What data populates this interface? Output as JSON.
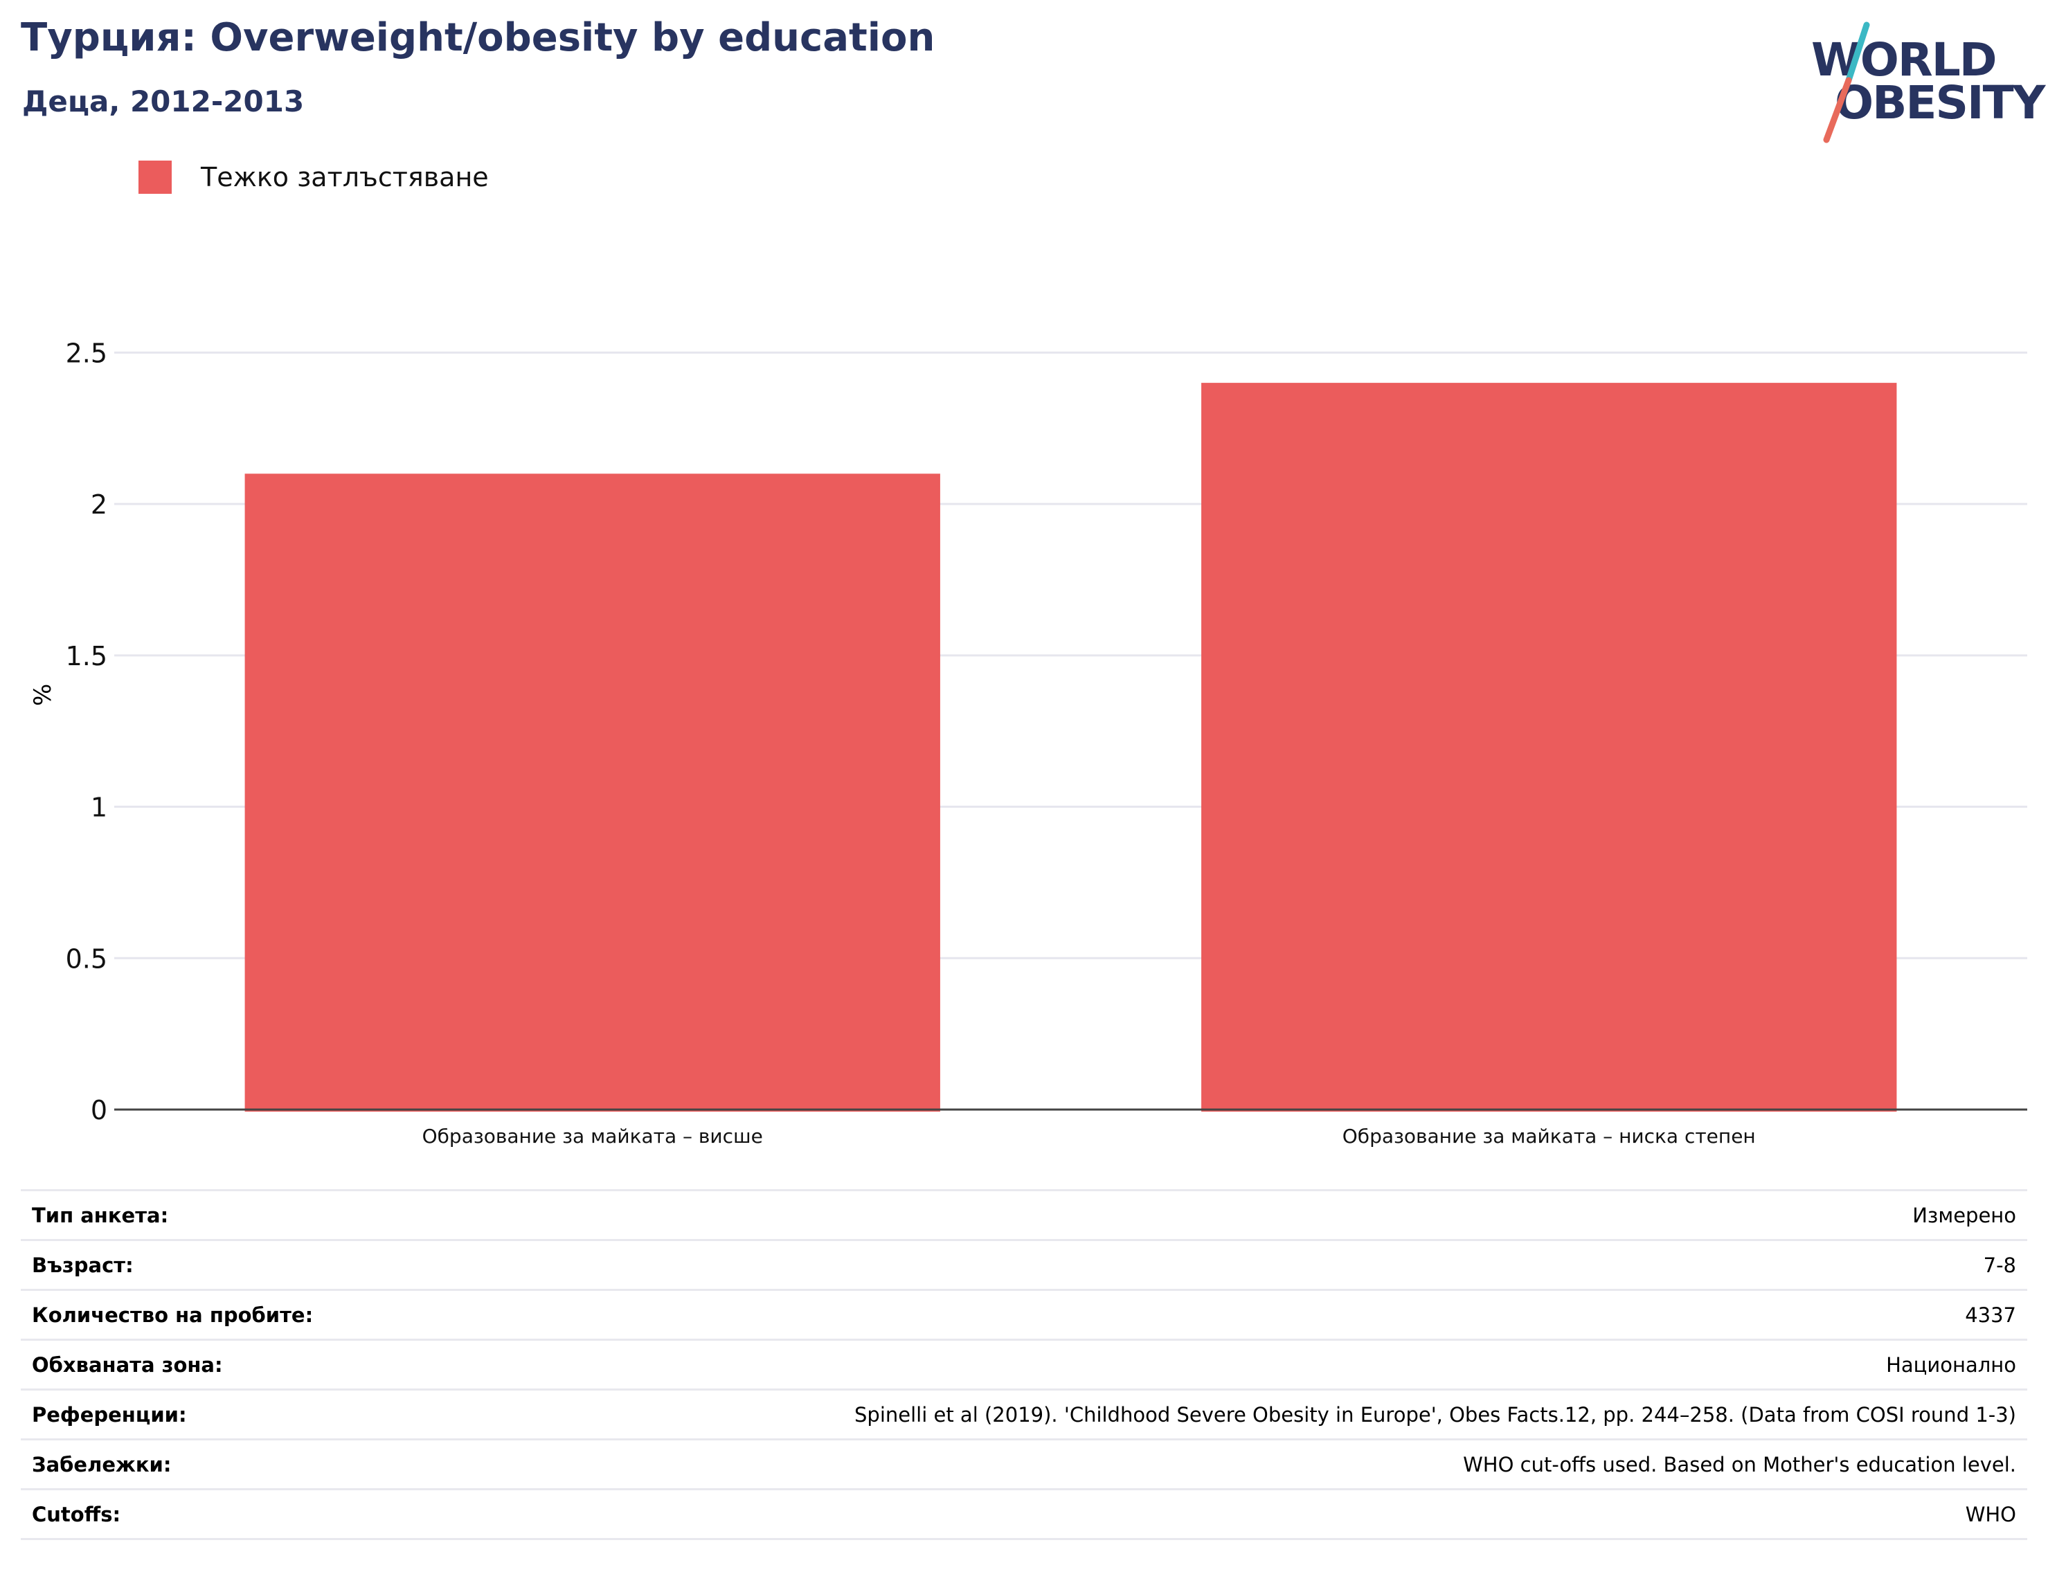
{
  "header": {
    "title": "Турция: Overweight/obesity by education",
    "subtitle": "Деца, 2012-2013"
  },
  "logo": {
    "line1": "WORLD",
    "line2": "OBESITY",
    "colors": {
      "text": "#283460",
      "slash_top": "#3bb8c4",
      "slash_bottom": "#e86a5b"
    }
  },
  "colors": {
    "bar": "#eb5c5c",
    "title": "#283460",
    "grid": "#e6e6ee",
    "axis": "#444444"
  },
  "chart_data": {
    "type": "bar",
    "title": "Турция: Overweight/obesity by education",
    "subtitle": "Деца, 2012-2013",
    "ylabel": "%",
    "xlabel": "",
    "ylim": [
      0,
      2.75
    ],
    "yticks": [
      0,
      0.5,
      1,
      1.5,
      2,
      2.5
    ],
    "ytick_labels": [
      "0",
      "0.5",
      "1",
      "1.5",
      "2",
      "2.5"
    ],
    "categories": [
      "Образование за майката – висше",
      "Образование за майката – ниска степен"
    ],
    "series": [
      {
        "name": "Тежко затлъстяване",
        "values": [
          2.1,
          2.4
        ],
        "color": "#eb5c5c"
      }
    ],
    "grid": true,
    "legend_position": "top-left"
  },
  "info": {
    "rows": [
      {
        "key": "Тип анкета:",
        "value": "Измерено"
      },
      {
        "key": "Възраст:",
        "value": "7-8"
      },
      {
        "key": "Количество на пробите:",
        "value": "4337"
      },
      {
        "key": "Обхваната зона:",
        "value": "Национално"
      },
      {
        "key": "Референции:",
        "value": "Spinelli et al (2019). 'Childhood Severe Obesity in Europe', Obes Facts.12, pp. 244–258. (Data from COSI round 1-3)"
      },
      {
        "key": "Забележки:",
        "value": "WHO cut-offs used. Based on Mother's education level."
      },
      {
        "key": "Cutoffs:",
        "value": "WHO"
      }
    ]
  }
}
